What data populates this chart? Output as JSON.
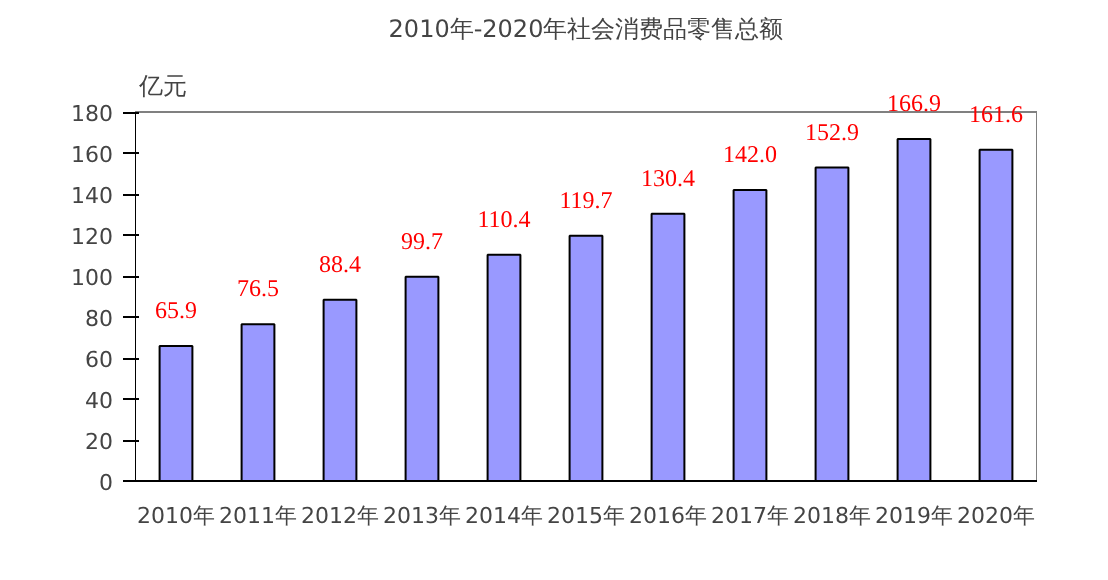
{
  "chart_data": {
    "type": "bar",
    "title": "2010年-2020年社会消费品零售总额",
    "ylabel": "亿元",
    "categories": [
      "2010年",
      "2011年",
      "2012年",
      "2013年",
      "2014年",
      "2015年",
      "2016年",
      "2017年",
      "2018年",
      "2019年",
      "2020年"
    ],
    "values": [
      65.9,
      76.5,
      88.4,
      99.7,
      110.4,
      119.7,
      130.4,
      142.0,
      152.9,
      166.9,
      161.6
    ],
    "value_labels": [
      "65.9",
      "76.5",
      "88.4",
      "99.7",
      "110.4",
      "119.7",
      "130.4",
      "142.0",
      "152.9",
      "166.9",
      "161.6"
    ],
    "color": "#9999ff",
    "ylim": [
      0,
      180
    ],
    "yticks": [
      0,
      20,
      40,
      60,
      80,
      100,
      120,
      140,
      160,
      180
    ],
    "grid": false
  }
}
